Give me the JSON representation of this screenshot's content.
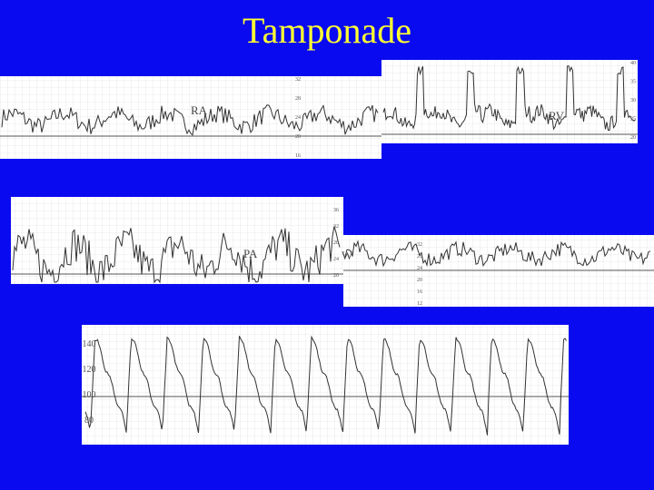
{
  "title": "Tamponade",
  "strips": [
    {
      "label": "RA",
      "scale": [
        "32",
        "28",
        "24",
        "20",
        "16"
      ]
    },
    {
      "label": "RV",
      "scale": [
        "40",
        "35",
        "30",
        "25",
        "20"
      ]
    },
    {
      "label": "PA",
      "scale": [
        "36",
        "32",
        "28",
        "24",
        "20"
      ]
    },
    {
      "label": "W",
      "scale": [
        "32",
        "28",
        "24",
        "20",
        "16",
        "12"
      ]
    },
    {
      "label": "",
      "scale": [
        "140",
        "120",
        "100",
        "80"
      ]
    }
  ]
}
